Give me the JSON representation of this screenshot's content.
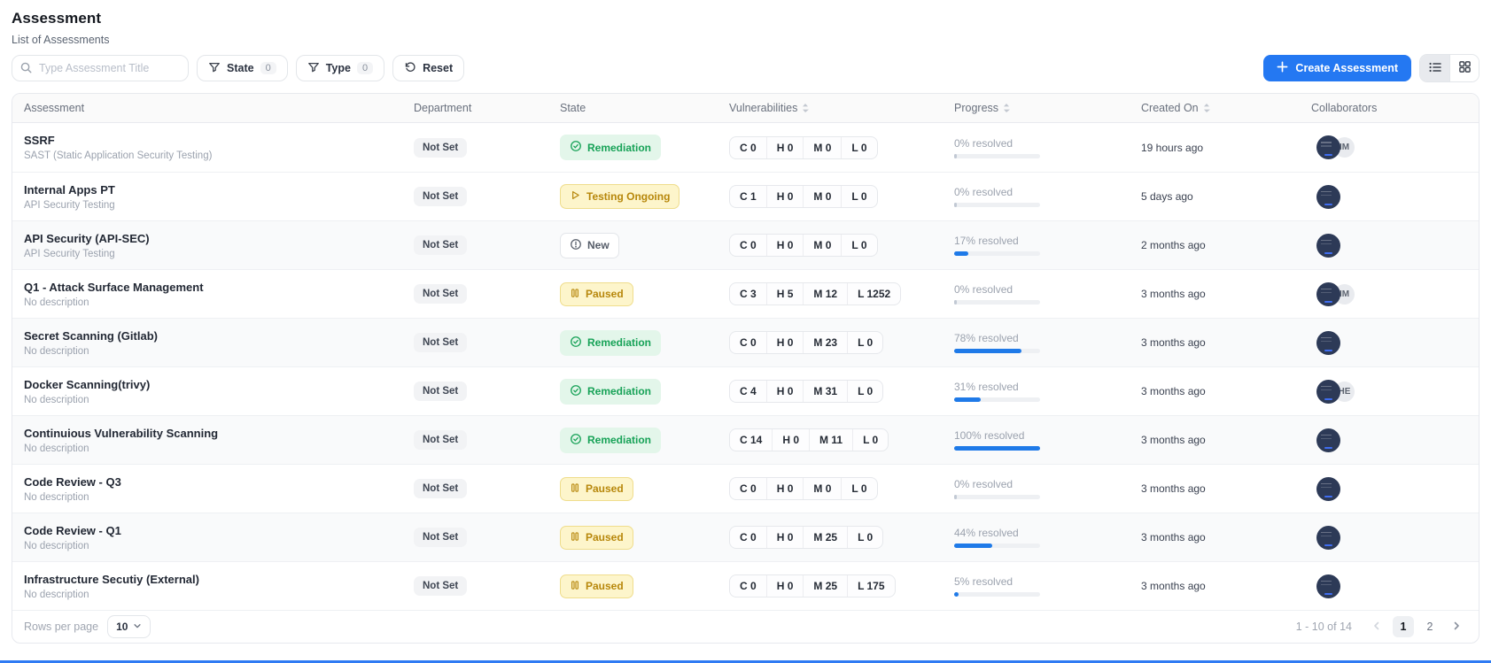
{
  "page": {
    "title": "Assessment",
    "subtitle": "List of Assessments"
  },
  "toolbar": {
    "search": {
      "placeholder": "Type Assessment Title",
      "value": "",
      "icon": "search-icon"
    },
    "state_filter": {
      "label": "State",
      "count": "0",
      "icon": "funnel-icon"
    },
    "type_filter": {
      "label": "Type",
      "count": "0",
      "icon": "funnel-icon"
    },
    "reset": {
      "label": "Reset",
      "icon": "refresh-icon"
    },
    "create": {
      "label": "Create Assessment",
      "icon": "plus-icon"
    },
    "view_modes": [
      {
        "name": "list-view",
        "icon": "list-icon",
        "active": true
      },
      {
        "name": "grid-view",
        "icon": "grid-icon",
        "active": false
      }
    ]
  },
  "table": {
    "columns": [
      {
        "label": "Assessment",
        "sortable": false
      },
      {
        "label": "Department",
        "sortable": false
      },
      {
        "label": "State",
        "sortable": false
      },
      {
        "label": "Vulnerabilities",
        "sortable": true
      },
      {
        "label": "Progress",
        "sortable": true
      },
      {
        "label": "Created On",
        "sortable": true
      },
      {
        "label": "Collaborators",
        "sortable": false
      }
    ],
    "rows": [
      {
        "name": "SSRF",
        "description": "SAST (Static Application Security Testing)",
        "department": "Not Set",
        "state": {
          "label": "Remediation",
          "type": "remediation"
        },
        "vulnerabilities": {
          "C": 0,
          "H": 0,
          "M": 0,
          "L": 0
        },
        "progress": {
          "percent": 0,
          "label": "0% resolved"
        },
        "created": "19 hours ago",
        "collaborators": [
          {
            "kind": "image"
          },
          {
            "kind": "initials",
            "text": "IM"
          }
        ]
      },
      {
        "name": "Internal Apps PT",
        "description": "API Security Testing",
        "department": "Not Set",
        "state": {
          "label": "Testing Ongoing",
          "type": "testing"
        },
        "vulnerabilities": {
          "C": 1,
          "H": 0,
          "M": 0,
          "L": 0
        },
        "progress": {
          "percent": 0,
          "label": "0% resolved"
        },
        "created": "5 days ago",
        "collaborators": [
          {
            "kind": "image"
          }
        ]
      },
      {
        "name": "API Security (API-SEC)",
        "description": "API Security Testing",
        "department": "Not Set",
        "state": {
          "label": "New",
          "type": "new"
        },
        "vulnerabilities": {
          "C": 0,
          "H": 0,
          "M": 0,
          "L": 0
        },
        "progress": {
          "percent": 17,
          "label": "17% resolved"
        },
        "created": "2 months ago",
        "collaborators": [
          {
            "kind": "image"
          }
        ]
      },
      {
        "name": "Q1 - Attack Surface Management",
        "description": "No description",
        "department": "Not Set",
        "state": {
          "label": "Paused",
          "type": "paused"
        },
        "vulnerabilities": {
          "C": 3,
          "H": 5,
          "M": 12,
          "L": 1252
        },
        "progress": {
          "percent": 0,
          "label": "0% resolved"
        },
        "created": "3 months ago",
        "collaborators": [
          {
            "kind": "image"
          },
          {
            "kind": "initials",
            "text": "IM"
          }
        ]
      },
      {
        "name": "Secret Scanning (Gitlab)",
        "description": "No description",
        "department": "Not Set",
        "state": {
          "label": "Remediation",
          "type": "remediation"
        },
        "vulnerabilities": {
          "C": 0,
          "H": 0,
          "M": 23,
          "L": 0
        },
        "progress": {
          "percent": 78,
          "label": "78% resolved"
        },
        "created": "3 months ago",
        "collaborators": [
          {
            "kind": "image"
          }
        ]
      },
      {
        "name": "Docker Scanning(trivy)",
        "description": "No description",
        "department": "Not Set",
        "state": {
          "label": "Remediation",
          "type": "remediation"
        },
        "vulnerabilities": {
          "C": 4,
          "H": 0,
          "M": 31,
          "L": 0
        },
        "progress": {
          "percent": 31,
          "label": "31% resolved"
        },
        "created": "3 months ago",
        "collaborators": [
          {
            "kind": "image"
          },
          {
            "kind": "initials",
            "text": "HE"
          }
        ]
      },
      {
        "name": "Continuious Vulnerability Scanning",
        "description": "No description",
        "department": "Not Set",
        "state": {
          "label": "Remediation",
          "type": "remediation"
        },
        "vulnerabilities": {
          "C": 14,
          "H": 0,
          "M": 11,
          "L": 0
        },
        "progress": {
          "percent": 100,
          "label": "100% resolved"
        },
        "created": "3 months ago",
        "collaborators": [
          {
            "kind": "image"
          }
        ]
      },
      {
        "name": "Code Review - Q3",
        "description": "No description",
        "department": "Not Set",
        "state": {
          "label": "Paused",
          "type": "paused"
        },
        "vulnerabilities": {
          "C": 0,
          "H": 0,
          "M": 0,
          "L": 0
        },
        "progress": {
          "percent": 0,
          "label": "0% resolved"
        },
        "created": "3 months ago",
        "collaborators": [
          {
            "kind": "image"
          }
        ]
      },
      {
        "name": "Code Review - Q1",
        "description": "No description",
        "department": "Not Set",
        "state": {
          "label": "Paused",
          "type": "paused"
        },
        "vulnerabilities": {
          "C": 0,
          "H": 0,
          "M": 25,
          "L": 0
        },
        "progress": {
          "percent": 44,
          "label": "44% resolved"
        },
        "created": "3 months ago",
        "collaborators": [
          {
            "kind": "image"
          }
        ]
      },
      {
        "name": "Infrastructure Secutiy (External)",
        "description": "No description",
        "department": "Not Set",
        "state": {
          "label": "Paused",
          "type": "paused"
        },
        "vulnerabilities": {
          "C": 0,
          "H": 0,
          "M": 25,
          "L": 175
        },
        "progress": {
          "percent": 5,
          "label": "5% resolved"
        },
        "created": "3 months ago",
        "collaborators": [
          {
            "kind": "image"
          }
        ]
      }
    ]
  },
  "footer": {
    "rows_per_page_label": "Rows per page",
    "rows_per_page_value": "10",
    "range_label": "1 - 10 of 14",
    "pages": [
      "1",
      "2"
    ],
    "active_page": "1"
  },
  "colors": {
    "accent_blue": "#2478f2",
    "progress_blue": "#1f7ae8",
    "badge_green_bg": "#e3f6ea",
    "badge_green_text": "#17a257",
    "badge_yellow_bg": "#fdf5cb",
    "badge_yellow_text": "#b7870b",
    "avatar_navy": "#2d3a57"
  }
}
